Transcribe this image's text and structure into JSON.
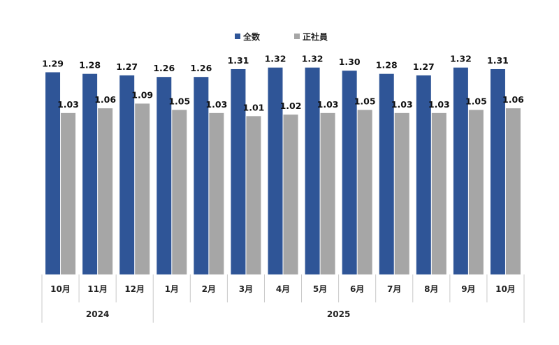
{
  "chart_data": {
    "type": "bar",
    "categories": [
      "10月",
      "11月",
      "12月",
      "1月",
      "2月",
      "3月",
      "4月",
      "5月",
      "6月",
      "7月",
      "8月",
      "9月",
      "10月"
    ],
    "year_groups": [
      {
        "label": "2024",
        "count": 3
      },
      {
        "label": "2025",
        "count": 10
      }
    ],
    "series": [
      {
        "name": "全数",
        "color": "#2F5597",
        "values": [
          1.29,
          1.28,
          1.27,
          1.26,
          1.26,
          1.31,
          1.32,
          1.32,
          1.3,
          1.28,
          1.27,
          1.32,
          1.31
        ]
      },
      {
        "name": "正社員",
        "color": "#A6A6A6",
        "values": [
          1.03,
          1.06,
          1.09,
          1.05,
          1.03,
          1.01,
          1.02,
          1.03,
          1.05,
          1.03,
          1.03,
          1.05,
          1.06
        ]
      }
    ],
    "ylim": [
      0,
      1.35
    ],
    "legend_position": "top-center",
    "grid": false
  }
}
